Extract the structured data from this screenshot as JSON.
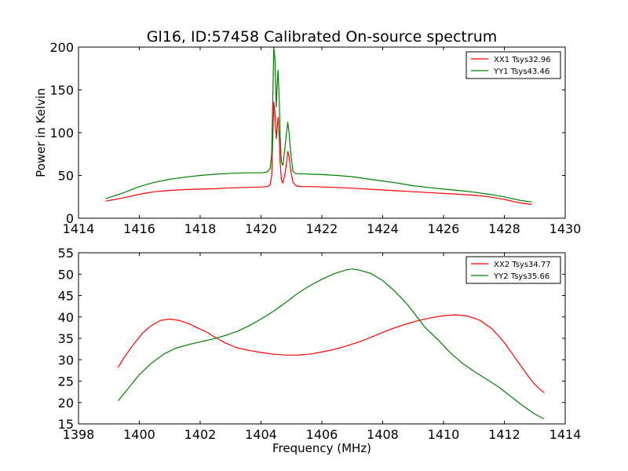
{
  "figure": {
    "title": "Gl16, ID:57458 Calibrated On-source spectrum",
    "background": "#ffffff"
  },
  "chart_data": [
    {
      "type": "line",
      "title": "",
      "xlabel": "",
      "ylabel": "Power in Kelvin",
      "xlim": [
        1414,
        1430
      ],
      "ylim": [
        0,
        200
      ],
      "xticks": [
        "1414",
        "1416",
        "1418",
        "1420",
        "1422",
        "1424",
        "1426",
        "1428",
        "1430"
      ],
      "yticks": [
        "0",
        "50",
        "100",
        "150",
        "200"
      ],
      "grid": false,
      "legend": "top-right",
      "series": [
        {
          "name": "XX1 Tsys32.96",
          "color": "#ff0000",
          "x": [
            1414.9,
            1415.5,
            1416.0,
            1416.5,
            1417.0,
            1417.5,
            1418.0,
            1418.5,
            1419.0,
            1419.5,
            1420.0,
            1420.2,
            1420.3,
            1420.35,
            1420.42,
            1420.46,
            1420.5,
            1420.53,
            1420.56,
            1420.6,
            1420.63,
            1420.67,
            1420.72,
            1420.78,
            1420.84,
            1420.88,
            1420.92,
            1420.98,
            1421.05,
            1421.15,
            1421.3,
            1421.6,
            1422.0,
            1422.5,
            1423.0,
            1423.5,
            1424.0,
            1424.5,
            1425.0,
            1425.5,
            1426.0,
            1426.5,
            1427.0,
            1427.5,
            1428.0,
            1428.5,
            1428.9
          ],
          "y": [
            20,
            24,
            28,
            31,
            32.5,
            33.5,
            34,
            34.5,
            35.5,
            36,
            36.5,
            37,
            39,
            50,
            136,
            122,
            93,
            105,
            118,
            95,
            65,
            45,
            41,
            50,
            65,
            78,
            72,
            55,
            42,
            38,
            37,
            37,
            36.5,
            36,
            35,
            34,
            33,
            32,
            31,
            30,
            29,
            28,
            27,
            25,
            22,
            18,
            16
          ]
        },
        {
          "name": "YY1 Tsys43.46",
          "color": "#008000",
          "x": [
            1414.9,
            1415.5,
            1416.0,
            1416.5,
            1417.0,
            1417.5,
            1418.0,
            1418.5,
            1419.0,
            1419.5,
            1420.0,
            1420.2,
            1420.3,
            1420.35,
            1420.42,
            1420.46,
            1420.5,
            1420.53,
            1420.56,
            1420.6,
            1420.63,
            1420.67,
            1420.72,
            1420.78,
            1420.84,
            1420.88,
            1420.92,
            1420.98,
            1421.05,
            1421.15,
            1421.3,
            1421.6,
            1422.0,
            1422.5,
            1423.0,
            1423.5,
            1424.0,
            1424.5,
            1425.0,
            1425.5,
            1426.0,
            1426.5,
            1427.0,
            1427.5,
            1428.0,
            1428.5,
            1428.9
          ],
          "y": [
            23,
            30,
            37,
            42,
            45.5,
            48,
            50,
            51.5,
            52.5,
            53,
            53,
            54,
            58,
            75,
            200,
            185,
            130,
            155,
            173,
            140,
            95,
            65,
            62,
            80,
            100,
            112,
            100,
            75,
            55,
            52,
            52,
            51.5,
            51,
            50,
            48.5,
            46,
            43.5,
            41,
            38,
            36,
            34,
            32.5,
            30.5,
            28,
            25,
            21,
            19
          ]
        }
      ]
    },
    {
      "type": "line",
      "title": "",
      "xlabel": "Frequency (MHz)",
      "ylabel": "",
      "xlim": [
        1398,
        1414
      ],
      "ylim": [
        15,
        55
      ],
      "xticks": [
        "1398",
        "1400",
        "1402",
        "1404",
        "1406",
        "1408",
        "1410",
        "1412",
        "1414"
      ],
      "yticks": [
        "15",
        "20",
        "25",
        "30",
        "35",
        "40",
        "45",
        "50",
        "55"
      ],
      "grid": false,
      "legend": "top-right",
      "series": [
        {
          "name": "XX2 Tsys34.77",
          "color": "#ff0000",
          "x": [
            1399.3,
            1399.5,
            1399.8,
            1400.1,
            1400.4,
            1400.7,
            1401.0,
            1401.3,
            1401.6,
            1401.9,
            1402.2,
            1402.5,
            1402.8,
            1403.2,
            1403.6,
            1404.0,
            1404.4,
            1404.8,
            1405.2,
            1405.6,
            1406.0,
            1406.4,
            1406.8,
            1407.2,
            1407.6,
            1408.0,
            1408.4,
            1408.8,
            1409.2,
            1409.6,
            1410.0,
            1410.4,
            1410.8,
            1411.2,
            1411.6,
            1412.0,
            1412.4,
            1412.8,
            1413.0,
            1413.3
          ],
          "y": [
            28.2,
            30.5,
            33.5,
            36.2,
            38,
            39.2,
            39.5,
            39.2,
            38.5,
            37.5,
            36.5,
            35.2,
            34,
            32.8,
            32.2,
            31.7,
            31.3,
            31.1,
            31.1,
            31.3,
            31.8,
            32.4,
            33.2,
            34.1,
            35.2,
            36.4,
            37.5,
            38.4,
            39.2,
            39.8,
            40.3,
            40.5,
            40.2,
            39.2,
            37.2,
            34,
            30,
            26,
            24.2,
            22.3
          ]
        },
        {
          "name": "YY2 Tsys35.66",
          "color": "#008000",
          "x": [
            1399.3,
            1399.6,
            1400.0,
            1400.4,
            1400.8,
            1401.2,
            1401.6,
            1402.0,
            1402.4,
            1402.8,
            1403.2,
            1403.6,
            1404.0,
            1404.4,
            1404.8,
            1405.2,
            1405.6,
            1406.0,
            1406.4,
            1406.8,
            1407.0,
            1407.2,
            1407.6,
            1408.0,
            1408.4,
            1408.8,
            1409.1,
            1409.4,
            1409.8,
            1410.2,
            1410.6,
            1411.0,
            1411.4,
            1411.8,
            1412.2,
            1412.6,
            1413.0,
            1413.3
          ],
          "y": [
            20.4,
            23,
            26.5,
            29.2,
            31.3,
            32.7,
            33.5,
            34.2,
            34.8,
            35.6,
            36.6,
            37.9,
            39.5,
            41.3,
            43.3,
            45.5,
            47.3,
            48.8,
            50.1,
            51,
            51.2,
            51,
            50.2,
            48.5,
            46,
            43,
            40.3,
            37.5,
            34.8,
            31.8,
            29.3,
            27.3,
            25.5,
            23.7,
            21.5,
            19.3,
            17.3,
            16.2
          ]
        }
      ]
    }
  ]
}
